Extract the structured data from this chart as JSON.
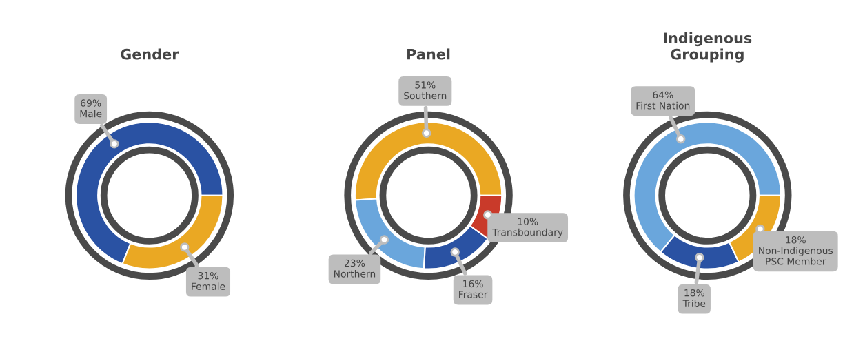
{
  "chart_data": [
    {
      "type": "donut",
      "title": "Gender",
      "categories": [
        "Male",
        "Female"
      ],
      "values": [
        69,
        31
      ],
      "colors": [
        "#2a52a3",
        "#eaa823"
      ],
      "value_labels": [
        "69%",
        "31%"
      ]
    },
    {
      "type": "donut",
      "title": "Panel",
      "categories": [
        "Southern",
        "Northern",
        "Fraser",
        "Transboundary"
      ],
      "values": [
        51,
        23,
        16,
        10
      ],
      "colors": [
        "#eaa823",
        "#6aa6dc",
        "#2a52a3",
        "#c93a2a"
      ],
      "value_labels": [
        "51%",
        "23%",
        "16%",
        "10%"
      ]
    },
    {
      "type": "donut",
      "title": "Indigenous\nGrouping",
      "categories": [
        "First Nation",
        "Tribe",
        "Non-Indigenous\nPSC Member"
      ],
      "values": [
        64,
        18,
        18
      ],
      "colors": [
        "#6aa6dc",
        "#2a52a3",
        "#eaa823"
      ],
      "value_labels": [
        "64%",
        "18%",
        "18%"
      ]
    }
  ]
}
